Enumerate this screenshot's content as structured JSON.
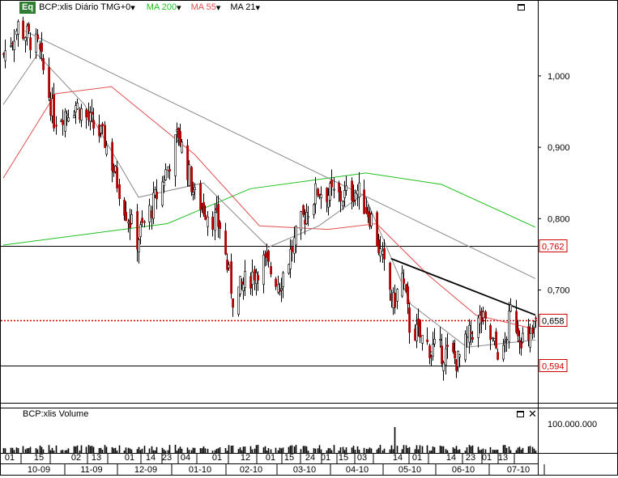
{
  "header": {
    "logo": "Eq",
    "symbol": "BCP:xlis Diário TMG+0",
    "ma200": "MA 200",
    "ma55": "MA 55",
    "ma21": "MA 21",
    "dropdown_glyph": "▾"
  },
  "volume_panel": {
    "title": "BCP:xlis Volume",
    "scale_label": "100.000.000"
  },
  "colors": {
    "ma200": "#1fbf1f",
    "ma55": "#e05050",
    "ma21": "#8a8a8a",
    "price": "#000000",
    "level_dotted": "#d00000",
    "trendline": "#8a8a8a"
  },
  "chart_data": {
    "type": "candlestick",
    "y_axis": {
      "min": 0.542,
      "max": 1.086,
      "ticks": [
        1.0,
        0.9,
        0.8,
        0.7
      ],
      "tick_labels": [
        "1,000",
        "0,900",
        "0,800",
        "0,700"
      ]
    },
    "horizontal_levels": [
      {
        "value": 0.762,
        "label": "0,762",
        "style": "solid-black"
      },
      {
        "value": 0.658,
        "label": "0,658",
        "style": "dotted-red"
      },
      {
        "value": 0.594,
        "label": "0,594",
        "style": "solid-black"
      }
    ],
    "x_day_labels": [
      "01",
      "15",
      "02",
      "13",
      "01",
      "14",
      "23",
      "04",
      "01",
      "12",
      "01",
      "15",
      "24",
      "01",
      "15",
      "03",
      "14",
      "01",
      "14",
      "23",
      "01",
      "13"
    ],
    "x_month_labels": [
      "10-09",
      "11-09",
      "12-09",
      "01-10",
      "02-10",
      "03-10",
      "04-10",
      "05-10",
      "06-10",
      "07-10"
    ],
    "price_pivots": [
      {
        "date": "2009-10-01",
        "close": 1.03
      },
      {
        "date": "2009-10-09",
        "close": 1.07
      },
      {
        "date": "2009-10-20",
        "close": 1.04
      },
      {
        "date": "2009-10-29",
        "close": 0.94
      },
      {
        "date": "2009-11-10",
        "close": 0.96
      },
      {
        "date": "2009-11-26",
        "close": 0.91
      },
      {
        "date": "2009-12-08",
        "close": 0.81
      },
      {
        "date": "2009-12-14",
        "close": 0.77
      },
      {
        "date": "2009-12-28",
        "close": 0.85
      },
      {
        "date": "2010-01-06",
        "close": 0.92
      },
      {
        "date": "2010-01-15",
        "close": 0.83
      },
      {
        "date": "2010-01-29",
        "close": 0.79
      },
      {
        "date": "2010-02-05",
        "close": 0.69
      },
      {
        "date": "2010-02-22",
        "close": 0.74
      },
      {
        "date": "2010-03-03",
        "close": 0.71
      },
      {
        "date": "2010-03-16",
        "close": 0.8
      },
      {
        "date": "2010-03-24",
        "close": 0.84
      },
      {
        "date": "2010-04-06",
        "close": 0.83
      },
      {
        "date": "2010-04-15",
        "close": 0.84
      },
      {
        "date": "2010-04-23",
        "close": 0.8
      },
      {
        "date": "2010-05-05",
        "close": 0.68
      },
      {
        "date": "2010-05-10",
        "close": 0.72
      },
      {
        "date": "2010-05-14",
        "close": 0.65
      },
      {
        "date": "2010-05-25",
        "close": 0.62
      },
      {
        "date": "2010-06-04",
        "close": 0.61
      },
      {
        "date": "2010-06-10",
        "close": 0.6
      },
      {
        "date": "2010-06-17",
        "close": 0.64
      },
      {
        "date": "2010-06-23",
        "close": 0.66
      },
      {
        "date": "2010-06-30",
        "close": 0.62
      },
      {
        "date": "2010-07-05",
        "close": 0.61
      },
      {
        "date": "2010-07-09",
        "close": 0.67
      },
      {
        "date": "2010-07-14",
        "close": 0.64
      },
      {
        "date": "2010-07-19",
        "close": 0.62
      },
      {
        "date": "2010-07-23",
        "close": 0.655
      }
    ],
    "moving_averages": {
      "ma200": [
        {
          "date": "2009-10-01",
          "value": 0.763
        },
        {
          "date": "2009-12-31",
          "value": 0.793
        },
        {
          "date": "2010-02-15",
          "value": 0.842
        },
        {
          "date": "2010-04-20",
          "value": 0.864
        },
        {
          "date": "2010-06-01",
          "value": 0.848
        },
        {
          "date": "2010-07-23",
          "value": 0.788
        }
      ],
      "ma55": [
        {
          "date": "2009-10-01",
          "value": 0.857
        },
        {
          "date": "2009-10-30",
          "value": 0.975
        },
        {
          "date": "2009-11-30",
          "value": 0.985
        },
        {
          "date": "2010-01-15",
          "value": 0.89
        },
        {
          "date": "2010-02-20",
          "value": 0.79
        },
        {
          "date": "2010-03-30",
          "value": 0.785
        },
        {
          "date": "2010-04-26",
          "value": 0.793
        },
        {
          "date": "2010-05-25",
          "value": 0.72
        },
        {
          "date": "2010-06-20",
          "value": 0.665
        },
        {
          "date": "2010-07-23",
          "value": 0.645
        }
      ],
      "ma21": [
        {
          "date": "2009-10-01",
          "value": 0.96
        },
        {
          "date": "2009-10-20",
          "value": 1.03
        },
        {
          "date": "2009-11-15",
          "value": 0.96
        },
        {
          "date": "2009-12-15",
          "value": 0.83
        },
        {
          "date": "2010-01-20",
          "value": 0.85
        },
        {
          "date": "2010-02-25",
          "value": 0.76
        },
        {
          "date": "2010-03-25",
          "value": 0.79
        },
        {
          "date": "2010-04-19",
          "value": 0.835
        },
        {
          "date": "2010-05-15",
          "value": 0.68
        },
        {
          "date": "2010-06-15",
          "value": 0.62
        },
        {
          "date": "2010-07-23",
          "value": 0.63
        }
      ]
    },
    "trendlines": [
      {
        "from": {
          "date": "2009-10-13",
          "value": 1.063
        },
        "to": {
          "date": "2010-07-23",
          "value": 0.716
        }
      },
      {
        "from": {
          "date": "2010-05-04",
          "value": 0.744
        },
        "to": {
          "date": "2010-07-23",
          "value": 0.665
        }
      }
    ],
    "volume": {
      "typical": 20000000,
      "peak": {
        "date": "2010-05-06",
        "value": 95000000
      }
    }
  }
}
